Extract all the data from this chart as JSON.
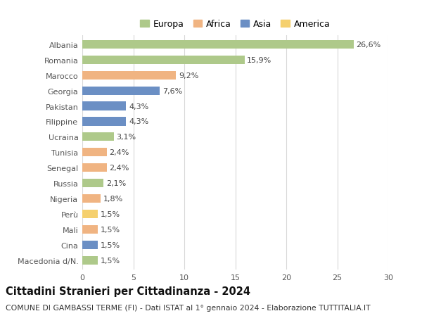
{
  "countries": [
    "Albania",
    "Romania",
    "Marocco",
    "Georgia",
    "Pakistan",
    "Filippine",
    "Ucraina",
    "Tunisia",
    "Senegal",
    "Russia",
    "Nigeria",
    "Perù",
    "Mali",
    "Cina",
    "Macedonia d/N."
  ],
  "values": [
    26.6,
    15.9,
    9.2,
    7.6,
    4.3,
    4.3,
    3.1,
    2.4,
    2.4,
    2.1,
    1.8,
    1.5,
    1.5,
    1.5,
    1.5
  ],
  "continents": [
    "Europa",
    "Europa",
    "Africa",
    "Asia",
    "Asia",
    "Asia",
    "Europa",
    "Africa",
    "Africa",
    "Europa",
    "Africa",
    "America",
    "Africa",
    "Asia",
    "Europa"
  ],
  "colors": {
    "Europa": "#aec98a",
    "Africa": "#f0b482",
    "Asia": "#6b8fc4",
    "America": "#f5d06e"
  },
  "legend_order": [
    "Europa",
    "Africa",
    "Asia",
    "America"
  ],
  "title": "Cittadini Stranieri per Cittadinanza - 2024",
  "subtitle": "COMUNE DI GAMBASSI TERME (FI) - Dati ISTAT al 1° gennaio 2024 - Elaborazione TUTTITALIA.IT",
  "xlim": [
    0,
    30
  ],
  "xticks": [
    0,
    5,
    10,
    15,
    20,
    25,
    30
  ],
  "bg_color": "#ffffff",
  "grid_color": "#d8d8d8",
  "bar_height": 0.55,
  "title_fontsize": 10.5,
  "subtitle_fontsize": 7.8,
  "label_fontsize": 8,
  "tick_fontsize": 8,
  "legend_fontsize": 9
}
